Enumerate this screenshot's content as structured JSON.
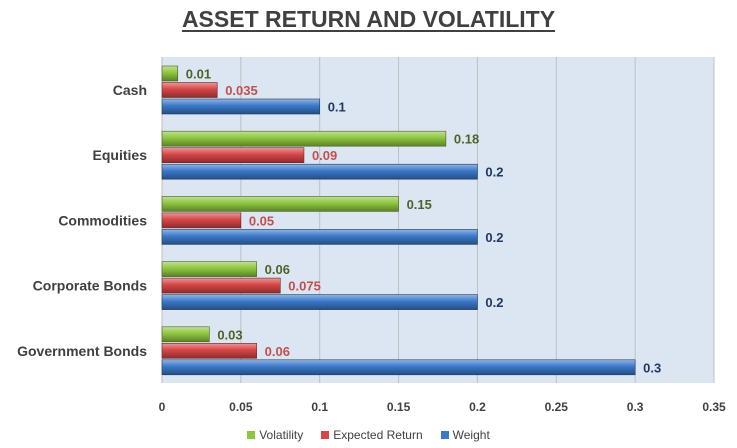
{
  "chart_data": {
    "type": "bar",
    "orientation": "horizontal",
    "title": "ASSET RETURN AND VOLATILITY",
    "categories": [
      "Cash",
      "Equities",
      "Commodities",
      "Corporate Bonds",
      "Government Bonds"
    ],
    "series": [
      {
        "name": "Volatility",
        "color": "#8DC63F",
        "label_color": "#4F6228",
        "values": [
          0.01,
          0.18,
          0.15,
          0.06,
          0.03
        ],
        "labels": [
          "0.01",
          "0.18",
          "0.15",
          "0.06",
          "0.03"
        ]
      },
      {
        "name": "Expected Return",
        "color": "#D64545",
        "label_color": "#C0504D",
        "values": [
          0.035,
          0.09,
          0.05,
          0.075,
          0.06
        ],
        "labels": [
          "0.035",
          "0.09",
          "0.05",
          "0.075",
          "0.06"
        ]
      },
      {
        "name": "Weight",
        "color": "#3A78C9",
        "label_color": "#1F3864",
        "values": [
          0.1,
          0.2,
          0.2,
          0.2,
          0.3
        ],
        "labels": [
          "0.1",
          "0.2",
          "0.2",
          "0.2",
          "0.3"
        ]
      }
    ],
    "xlim": [
      0,
      0.35
    ],
    "xticks": [
      "0",
      "0.05",
      "0.1",
      "0.15",
      "0.2",
      "0.25",
      "0.3",
      "0.35"
    ],
    "xlabel": "",
    "ylabel": "",
    "grid": "vertical",
    "plot_background": "#DCE6F2",
    "legend_position": "bottom"
  }
}
